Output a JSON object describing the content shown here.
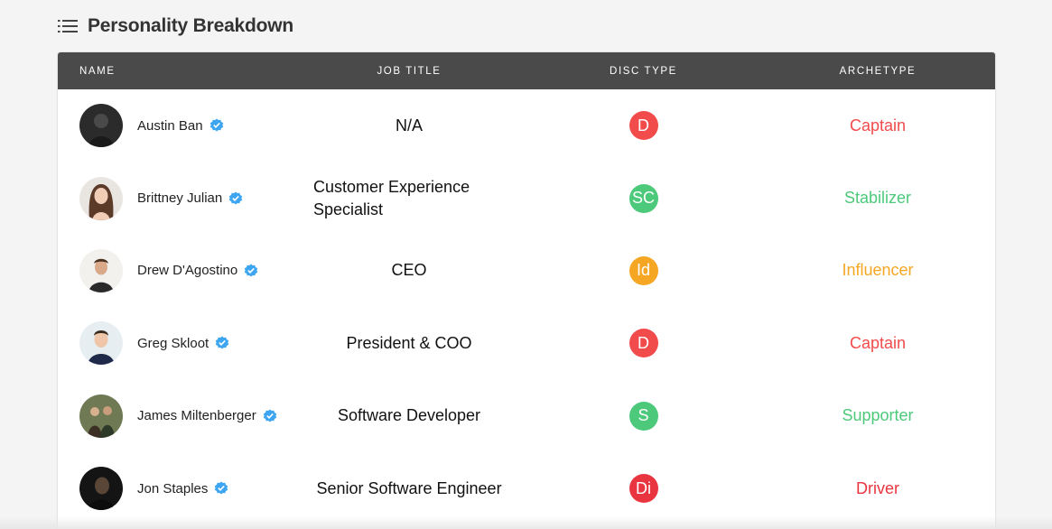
{
  "section": {
    "title": "Personality Breakdown",
    "icon": "list-icon"
  },
  "table": {
    "columns": {
      "name": "NAME",
      "job": "JOB TITLE",
      "disc": "DISC TYPE",
      "archetype": "ARCHETYPE"
    },
    "rows": [
      {
        "name": "Austin Ban",
        "job": "N/A",
        "disc": "D",
        "archetype": "Captain",
        "color": "#f24b4b"
      },
      {
        "name": "Brittney Julian",
        "job": "Customer Experience Specialist",
        "disc": "SC",
        "archetype": "Stabilizer",
        "color": "#4cc97a"
      },
      {
        "name": "Drew D'Agostino",
        "job": "CEO",
        "disc": "Id",
        "archetype": "Influencer",
        "color": "#f5a623"
      },
      {
        "name": "Greg Skloot",
        "job": "President & COO",
        "disc": "D",
        "archetype": "Captain",
        "color": "#f24b4b"
      },
      {
        "name": "James Miltenberger",
        "job": "Software Developer",
        "disc": "S",
        "archetype": "Supporter",
        "color": "#4cc97a"
      },
      {
        "name": "Jon Staples",
        "job": "Senior Software Engineer",
        "disc": "Di",
        "archetype": "Driver",
        "color": "#e8353f"
      }
    ]
  },
  "verified_color": "#3ea6f0"
}
